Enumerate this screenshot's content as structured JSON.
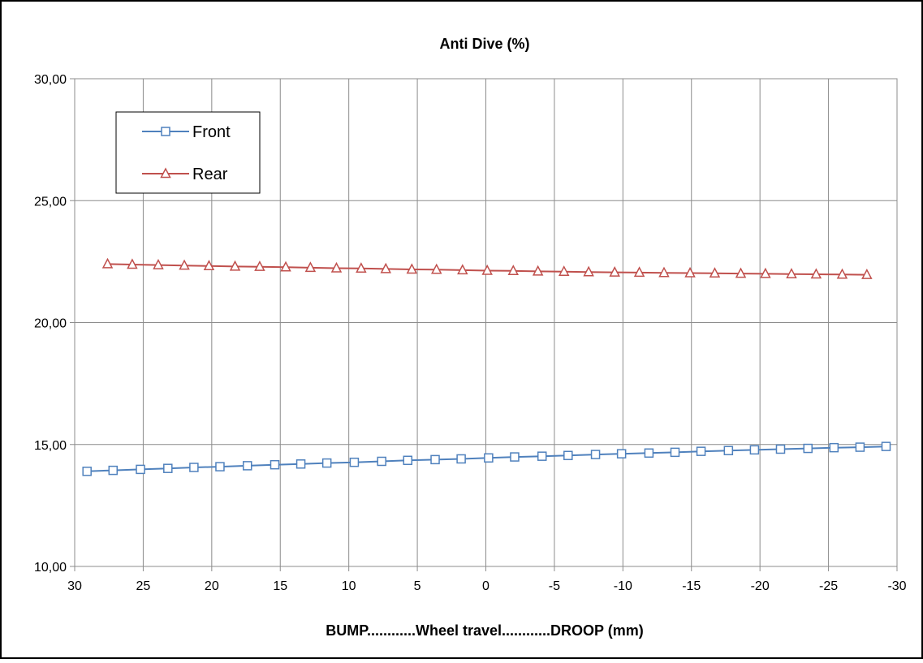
{
  "chart_data": {
    "type": "line",
    "title": "Anti Dive (%)",
    "xlabel": "BUMP............Wheel travel............DROOP (mm)",
    "ylabel": "",
    "xlim": [
      30,
      -30
    ],
    "ylim": [
      10,
      30
    ],
    "x_reversed": true,
    "x_ticks": [
      "30",
      "25",
      "20",
      "15",
      "10",
      "5",
      "0",
      "-5",
      "-10",
      "-15",
      "-20",
      "-25",
      "-30"
    ],
    "y_ticks": [
      "10,00",
      "15,00",
      "20,00",
      "25,00",
      "30,00"
    ],
    "grid": true,
    "legend": {
      "position": "top-left",
      "border": true
    },
    "series": [
      {
        "name": "Front",
        "color": "#4F81BD",
        "marker": "square",
        "x": [
          29.1,
          27.2,
          25.2,
          23.2,
          21.3,
          19.4,
          17.4,
          15.4,
          13.5,
          11.6,
          9.6,
          7.6,
          5.7,
          3.7,
          1.8,
          -0.2,
          -2.1,
          -4.1,
          -6.0,
          -8.0,
          -9.9,
          -11.9,
          -13.8,
          -15.7,
          -17.7,
          -19.6,
          -21.5,
          -23.5,
          -25.4,
          -27.3,
          -29.2
        ],
        "values": [
          13.9,
          13.94,
          13.98,
          14.02,
          14.06,
          14.09,
          14.13,
          14.17,
          14.2,
          14.24,
          14.27,
          14.31,
          14.35,
          14.38,
          14.41,
          14.45,
          14.49,
          14.52,
          14.55,
          14.59,
          14.62,
          14.65,
          14.68,
          14.72,
          14.75,
          14.78,
          14.81,
          14.84,
          14.87,
          14.89,
          14.92
        ]
      },
      {
        "name": "Rear",
        "color": "#C0504D",
        "marker": "triangle",
        "x": [
          27.6,
          25.8,
          23.9,
          22.0,
          20.2,
          18.3,
          16.5,
          14.6,
          12.8,
          10.9,
          9.1,
          7.3,
          5.4,
          3.6,
          1.7,
          -0.1,
          -2.0,
          -3.8,
          -5.7,
          -7.5,
          -9.4,
          -11.2,
          -13.0,
          -14.9,
          -16.7,
          -18.6,
          -20.4,
          -22.3,
          -24.1,
          -26.0,
          -27.8
        ],
        "values": [
          22.4,
          22.38,
          22.36,
          22.34,
          22.32,
          22.3,
          22.29,
          22.27,
          22.25,
          22.23,
          22.22,
          22.2,
          22.18,
          22.17,
          22.15,
          22.13,
          22.12,
          22.1,
          22.09,
          22.07,
          22.06,
          22.05,
          22.04,
          22.03,
          22.02,
          22.01,
          22.0,
          21.99,
          21.98,
          21.97,
          21.96
        ]
      }
    ]
  }
}
